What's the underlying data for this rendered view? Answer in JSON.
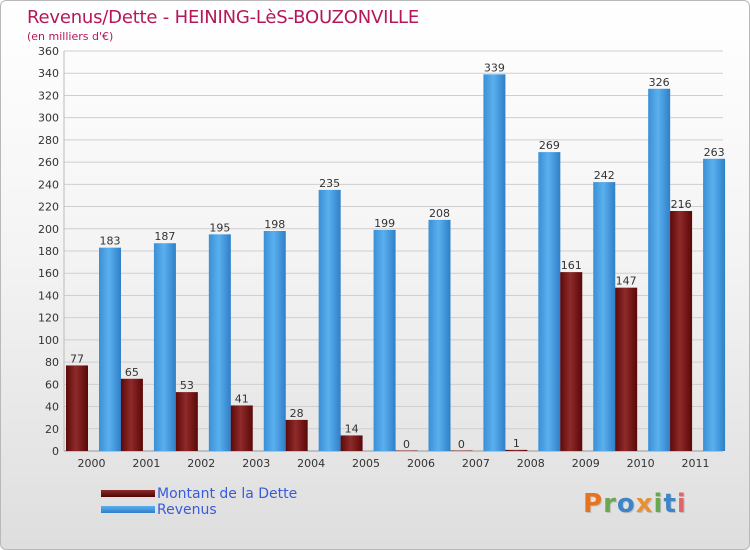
{
  "header": {
    "title": "Revenus/Dette - HEINING-LèS-BOUZONVILLE",
    "subtitle": "(en milliers d'€)"
  },
  "legend": {
    "items": [
      {
        "label": "Montant de la Dette",
        "color": "#6b0f0f"
      },
      {
        "label": "Revenus",
        "color": "#3d9be2"
      }
    ]
  },
  "logo": {
    "letters": [
      {
        "ch": "P",
        "color": "#e8731f"
      },
      {
        "ch": "r",
        "color": "#6aa84f"
      },
      {
        "ch": "o",
        "color": "#3d85c6"
      },
      {
        "ch": "x",
        "color": "#e69138"
      },
      {
        "ch": "i",
        "color": "#6aa84f"
      },
      {
        "ch": "t",
        "color": "#3d85c6"
      },
      {
        "ch": "i",
        "color": "#e06666"
      }
    ]
  },
  "chart_data": {
    "type": "bar",
    "title": "Revenus/Dette - HEINING-LèS-BOUZONVILLE",
    "ylabel": "(en milliers d'€)",
    "xlabel": "",
    "categories": [
      "2000",
      "2001",
      "2002",
      "2003",
      "2004",
      "2005",
      "2006",
      "2007",
      "2008",
      "2009",
      "2010",
      "2011"
    ],
    "series": [
      {
        "name": "Montant de la Dette",
        "color": "#7a1a1a",
        "values": [
          77,
          65,
          53,
          41,
          28,
          14,
          0,
          0,
          1,
          161,
          147,
          216
        ]
      },
      {
        "name": "Revenus",
        "color": "#3d9be2",
        "values": [
          183,
          187,
          195,
          198,
          235,
          199,
          208,
          339,
          269,
          242,
          326,
          263
        ]
      }
    ],
    "ylim": [
      0,
      360
    ],
    "yticks": [
      0,
      20,
      40,
      60,
      80,
      100,
      120,
      140,
      160,
      180,
      200,
      220,
      240,
      260,
      280,
      300,
      320,
      340,
      360
    ],
    "grid": true,
    "legend_position": "bottom-left"
  }
}
